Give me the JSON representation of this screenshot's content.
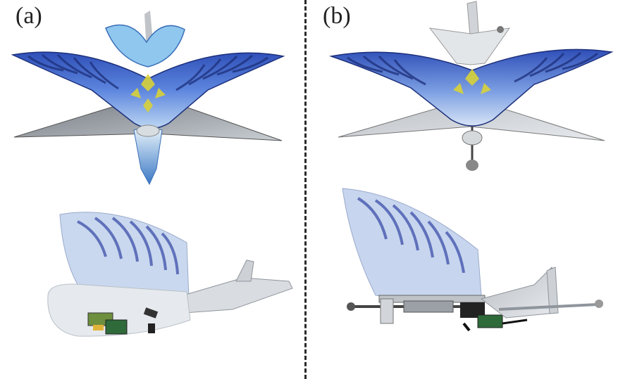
{
  "panels": [
    {
      "label": "(a)",
      "view_top": "bird-robot-top-view-decorated",
      "view_side": "bird-robot-side-view-decorated"
    },
    {
      "label": "(b)",
      "view_top": "bird-robot-top-view-bare-tail",
      "view_side": "bird-robot-side-view-mechanism"
    }
  ],
  "colors": {
    "wing_blue": "#3a63c9",
    "wing_dark": "#1c2f7a",
    "wing_light": "#cfe3f6",
    "accent_yellow": "#d8d23a",
    "tail_grey": "#8f959c",
    "tail_light": "#d9dde2",
    "rod_dark": "#444444",
    "divider": "#2a2a2a"
  }
}
